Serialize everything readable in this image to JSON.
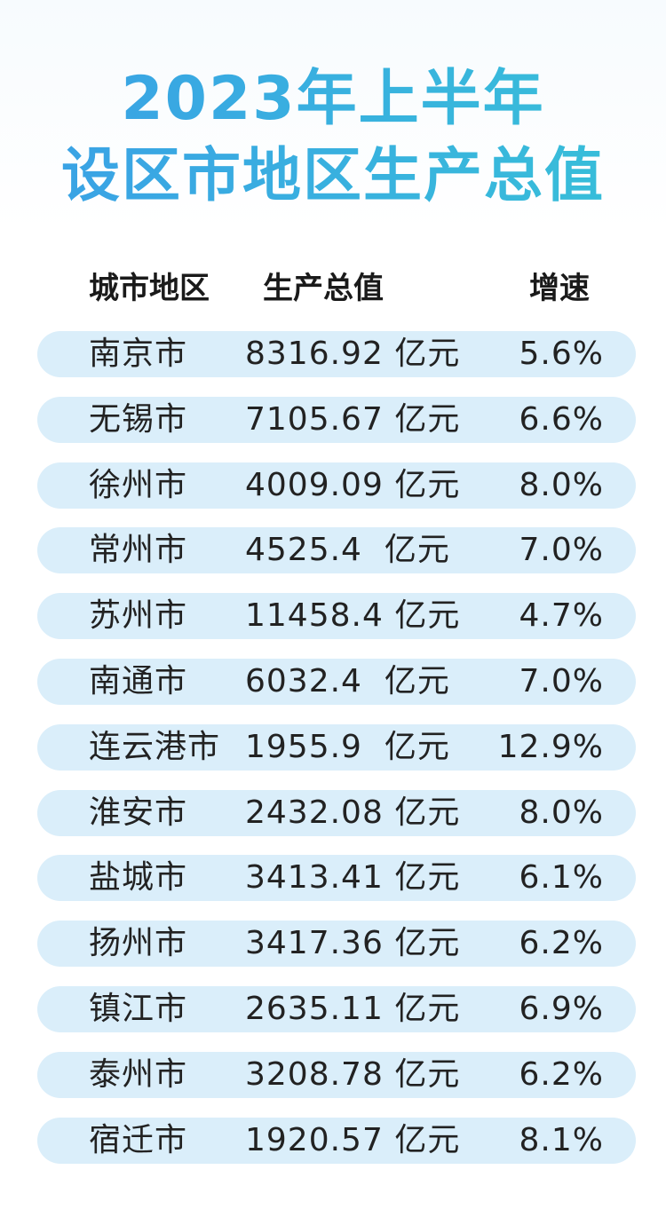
{
  "title": {
    "line1": "2023年上半年",
    "line2": "设区市地区生产总值"
  },
  "header": {
    "city": "城市地区",
    "gdp": "生产总值",
    "growth": "增速"
  },
  "rows": [
    {
      "city": "南京市",
      "gdp": "8316.92 亿元",
      "growth": "5.6%"
    },
    {
      "city": "无锡市",
      "gdp": "7105.67 亿元",
      "growth": "6.6%"
    },
    {
      "city": "徐州市",
      "gdp": "4009.09 亿元",
      "growth": "8.0%"
    },
    {
      "city": "常州市",
      "gdp": "4525.4  亿元",
      "growth": "7.0%"
    },
    {
      "city": "苏州市",
      "gdp": "11458.4 亿元",
      "growth": "4.7%"
    },
    {
      "city": "南通市",
      "gdp": "6032.4  亿元",
      "growth": "7.0%"
    },
    {
      "city": "连云港市",
      "gdp": "1955.9  亿元",
      "growth": "12.9%"
    },
    {
      "city": "淮安市",
      "gdp": "2432.08 亿元",
      "growth": "8.0%"
    },
    {
      "city": "盐城市",
      "gdp": "3413.41 亿元",
      "growth": "6.1%"
    },
    {
      "city": "扬州市",
      "gdp": "3417.36 亿元",
      "growth": "6.2%"
    },
    {
      "city": "镇江市",
      "gdp": "2635.11 亿元",
      "growth": "6.9%"
    },
    {
      "city": "泰州市",
      "gdp": "3208.78 亿元",
      "growth": "6.2%"
    },
    {
      "city": "宿迁市",
      "gdp": "1920.57 亿元",
      "growth": "8.1%"
    }
  ],
  "colors": {
    "title": "#2e9fd8",
    "row_background": "#daeefa",
    "text": "#222222"
  }
}
